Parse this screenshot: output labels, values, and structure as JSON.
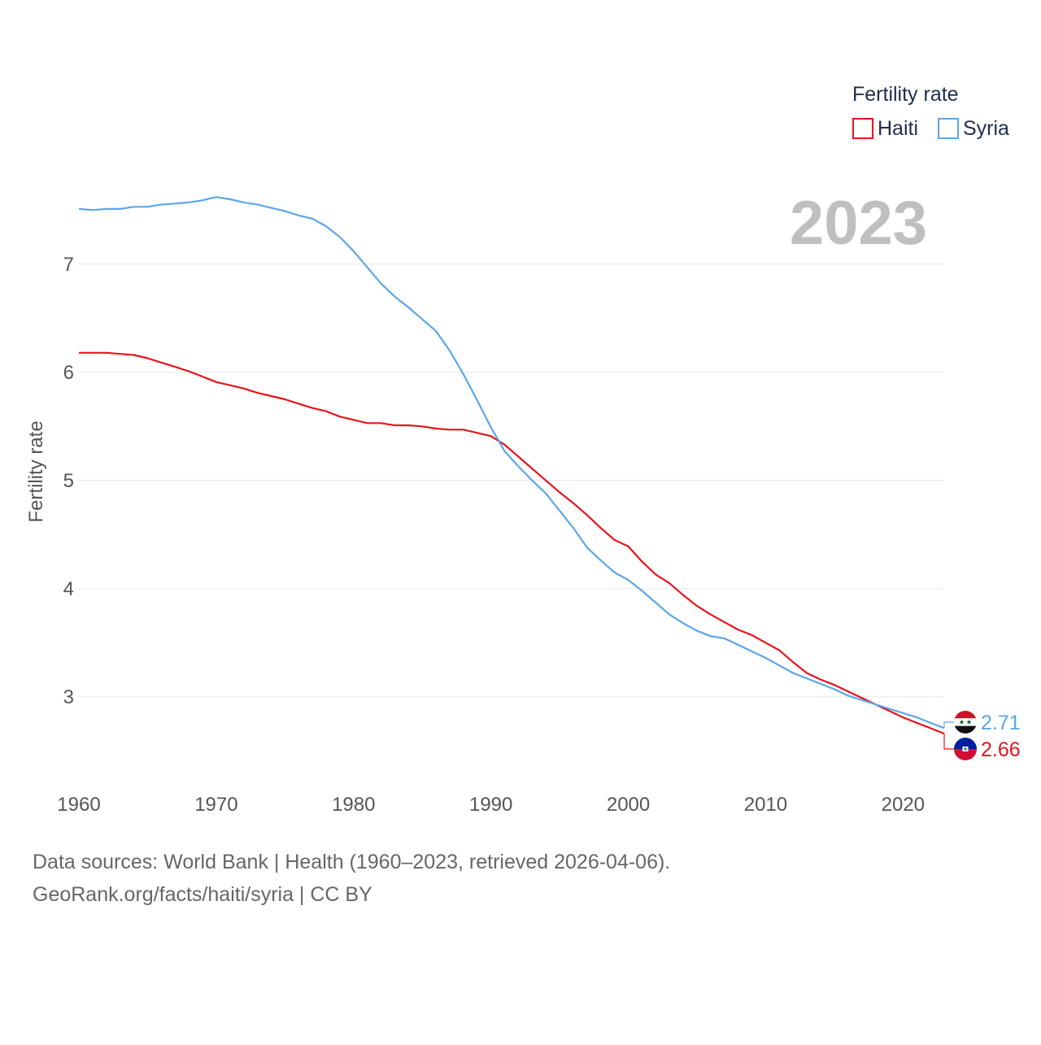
{
  "chart_data": {
    "type": "line",
    "title": "Fertility rate",
    "year_label": "2023",
    "xlabel": "",
    "ylabel": "Fertility rate",
    "xlim": [
      1960,
      2023
    ],
    "ylim": [
      2.45,
      7.75
    ],
    "x_ticks": [
      "1960",
      "1970",
      "1980",
      "1990",
      "2000",
      "2010",
      "2020"
    ],
    "y_ticks": [
      "3",
      "4",
      "5",
      "6",
      "7"
    ],
    "legend_title": "Fertility rate",
    "legend_position": "top-right",
    "grid": true,
    "x": [
      1960,
      1961,
      1962,
      1963,
      1964,
      1965,
      1966,
      1967,
      1968,
      1969,
      1970,
      1971,
      1972,
      1973,
      1974,
      1975,
      1976,
      1977,
      1978,
      1979,
      1980,
      1981,
      1982,
      1983,
      1984,
      1985,
      1986,
      1987,
      1988,
      1989,
      1990,
      1991,
      1992,
      1993,
      1994,
      1995,
      1996,
      1997,
      1998,
      1999,
      2000,
      2001,
      2002,
      2003,
      2004,
      2005,
      2006,
      2007,
      2008,
      2009,
      2010,
      2011,
      2012,
      2013,
      2014,
      2015,
      2016,
      2017,
      2018,
      2019,
      2020,
      2021,
      2022,
      2023
    ],
    "series": [
      {
        "name": "Haiti",
        "color": "#e8141a",
        "end_label": "2.66",
        "flag": "haiti-flag",
        "values": [
          6.18,
          6.18,
          6.18,
          6.17,
          6.16,
          6.13,
          6.09,
          6.05,
          6.01,
          5.96,
          5.91,
          5.88,
          5.85,
          5.81,
          5.78,
          5.75,
          5.71,
          5.67,
          5.64,
          5.59,
          5.56,
          5.53,
          5.53,
          5.51,
          5.51,
          5.5,
          5.48,
          5.47,
          5.47,
          5.44,
          5.41,
          5.33,
          5.22,
          5.11,
          5.0,
          4.89,
          4.79,
          4.68,
          4.56,
          4.45,
          4.39,
          4.25,
          4.13,
          4.05,
          3.94,
          3.84,
          3.76,
          3.69,
          3.62,
          3.57,
          3.5,
          3.43,
          3.32,
          3.22,
          3.16,
          3.11,
          3.05,
          2.99,
          2.93,
          2.87,
          2.81,
          2.76,
          2.71,
          2.66
        ]
      },
      {
        "name": "Syria",
        "color": "#5ca6e8",
        "end_label": "2.71",
        "flag": "syria-flag",
        "values": [
          7.51,
          7.5,
          7.51,
          7.51,
          7.53,
          7.53,
          7.55,
          7.56,
          7.57,
          7.59,
          7.62,
          7.6,
          7.57,
          7.55,
          7.52,
          7.49,
          7.45,
          7.42,
          7.35,
          7.25,
          7.12,
          6.97,
          6.82,
          6.7,
          6.6,
          6.49,
          6.38,
          6.2,
          5.98,
          5.74,
          5.49,
          5.27,
          5.13,
          5.0,
          4.88,
          4.72,
          4.56,
          4.38,
          4.26,
          4.15,
          4.08,
          3.98,
          3.87,
          3.76,
          3.68,
          3.61,
          3.56,
          3.54,
          3.48,
          3.42,
          3.36,
          3.29,
          3.22,
          3.17,
          3.12,
          3.07,
          3.01,
          2.97,
          2.93,
          2.89,
          2.85,
          2.81,
          2.76,
          2.71
        ]
      }
    ]
  },
  "source": {
    "line1": "Data sources: World Bank | Health (1960–2023, retrieved 2026-04-06).",
    "line2": "GeoRank.org/facts/haiti/syria | CC BY"
  }
}
